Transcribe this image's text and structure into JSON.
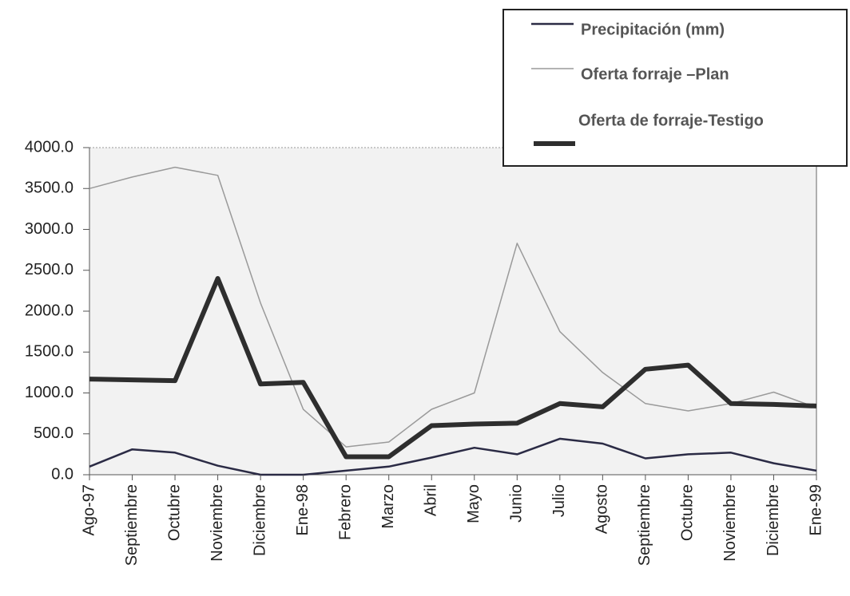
{
  "chart_data": {
    "type": "line",
    "categories": [
      "Ago-97",
      "Septiembre",
      "Octubre",
      "Noviembre",
      "Diciembre",
      "Ene-98",
      "Febrero",
      "Marzo",
      "Abril",
      "Mayo",
      "Junio",
      "Julio",
      "Agosto",
      "Septiembre",
      "Octubre",
      "Noviembre",
      "Diciembre",
      "Ene-99"
    ],
    "series": [
      {
        "name": "Precipitación (mm)",
        "color": "#2b2b45",
        "values": [
          100,
          310,
          270,
          110,
          0,
          0,
          50,
          100,
          210,
          330,
          250,
          440,
          380,
          200,
          250,
          270,
          140,
          50
        ]
      },
      {
        "name": "Oferta forraje –Plan",
        "color": "#9a9a9a",
        "values": [
          3500,
          3640,
          3760,
          3660,
          2100,
          800,
          340,
          400,
          800,
          1000,
          2830,
          1750,
          1250,
          870,
          780,
          870,
          1010,
          820
        ]
      },
      {
        "name": "Oferta de forraje-Testigo",
        "color": "#2e2e2e",
        "values": [
          1170,
          1160,
          1150,
          2400,
          1110,
          1130,
          220,
          220,
          600,
          620,
          630,
          870,
          830,
          1290,
          1340,
          870,
          860,
          840
        ]
      }
    ],
    "ylim": [
      0,
      4000
    ],
    "yticks": [
      {
        "value": 0,
        "label": "0.0"
      },
      {
        "value": 500,
        "label": "500.0"
      },
      {
        "value": 1000,
        "label": "1000.0"
      },
      {
        "value": 1500,
        "label": "1500.0"
      },
      {
        "value": 2000,
        "label": "2000.0"
      },
      {
        "value": 2500,
        "label": "2500.0"
      },
      {
        "value": 3000,
        "label": "3000.0"
      },
      {
        "value": 3500,
        "label": "3500.0"
      },
      {
        "value": 4000,
        "label": "4000.0"
      }
    ]
  }
}
